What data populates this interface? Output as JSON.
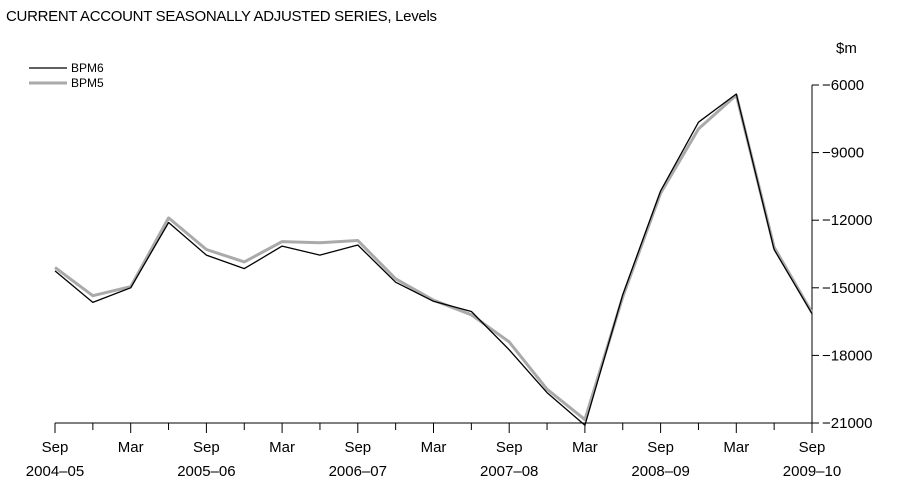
{
  "chart_data": {
    "type": "line",
    "title": "CURRENT ACCOUNT SEASONALLY ADJUSTED SERIES, Levels",
    "ylabel": "$m",
    "xlabel": "",
    "ylim": [
      -21000,
      -6000
    ],
    "yticks": [
      -6000,
      -9000,
      -12000,
      -15000,
      -18000,
      -21000
    ],
    "grid": false,
    "legend_position": "top-left",
    "x": [
      "Sep 2004",
      "Dec 2004",
      "Mar 2005",
      "Jun 2005",
      "Sep 2005",
      "Dec 2005",
      "Mar 2006",
      "Jun 2006",
      "Sep 2006",
      "Dec 2006",
      "Mar 2007",
      "Jun 2007",
      "Sep 2007",
      "Dec 2007",
      "Mar 2008",
      "Jun 2008",
      "Sep 2008",
      "Dec 2008",
      "Mar 2009",
      "Jun 2009",
      "Sep 2009"
    ],
    "x_tick_labels": [
      {
        "month": "Sep",
        "year": "2004–05"
      },
      {
        "month": "Mar",
        "year": ""
      },
      {
        "month": "Sep",
        "year": "2005–06"
      },
      {
        "month": "Mar",
        "year": ""
      },
      {
        "month": "Sep",
        "year": "2006–07"
      },
      {
        "month": "Mar",
        "year": ""
      },
      {
        "month": "Sep",
        "year": "2007–08"
      },
      {
        "month": "Mar",
        "year": ""
      },
      {
        "month": "Sep",
        "year": "2008–09"
      },
      {
        "month": "Mar",
        "year": ""
      },
      {
        "month": "Sep",
        "year": "2009–10"
      }
    ],
    "series": [
      {
        "name": "BPM6",
        "color": "#000000",
        "values": [
          -14250,
          -15650,
          -15000,
          -12100,
          -13550,
          -14150,
          -13150,
          -13550,
          -13100,
          -14750,
          -15600,
          -16050,
          -17750,
          -19650,
          -21100,
          -15300,
          -10700,
          -7650,
          -6400,
          -13300,
          -16150
        ]
      },
      {
        "name": "BPM5",
        "color": "#aaaaaa",
        "values": [
          -14100,
          -15350,
          -14950,
          -11900,
          -13300,
          -13850,
          -12950,
          -13000,
          -12900,
          -14600,
          -15550,
          -16200,
          -17400,
          -19500,
          -20850,
          -15400,
          -10800,
          -7950,
          -6450,
          -13200,
          -16100
        ]
      }
    ]
  }
}
